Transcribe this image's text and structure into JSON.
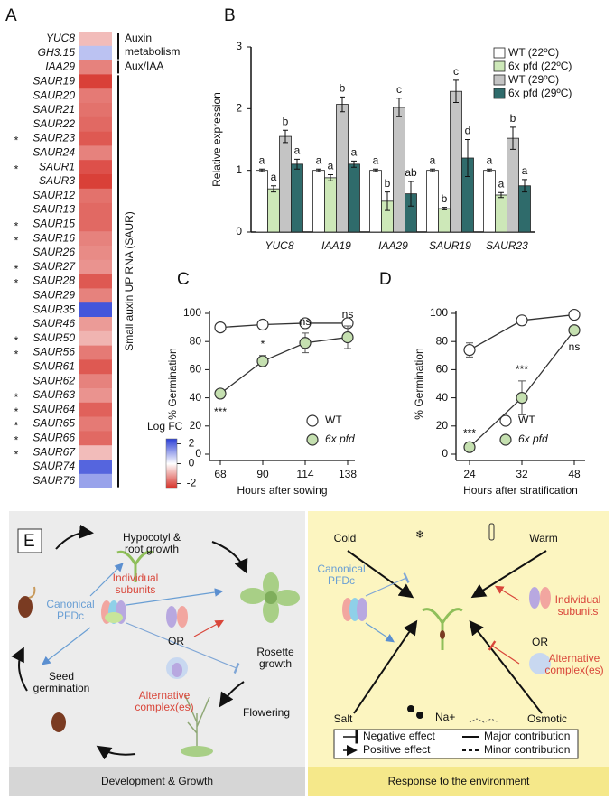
{
  "panel_labels": [
    "A",
    "B",
    "C",
    "D",
    "E"
  ],
  "chart_data": [
    {
      "type": "heatmap",
      "categories": [
        "YUC8",
        "GH3.15",
        "IAA29",
        "SAUR19",
        "SAUR20",
        "SAUR21",
        "SAUR22",
        "SAUR23",
        "SAUR24",
        "SAUR1",
        "SAUR3",
        "SAUR12",
        "SAUR13",
        "SAUR15",
        "SAUR16",
        "SAUR26",
        "SAUR27",
        "SAUR28",
        "SAUR29",
        "SAUR35",
        "SAUR46",
        "SAUR50",
        "SAUR56",
        "SAUR61",
        "SAUR62",
        "SAUR63",
        "SAUR64",
        "SAUR65",
        "SAUR66",
        "SAUR67",
        "SAUR74",
        "SAUR76"
      ],
      "significance": [
        null,
        null,
        null,
        null,
        null,
        null,
        null,
        "*",
        null,
        "*",
        null,
        null,
        null,
        "*",
        "*",
        null,
        "*",
        "*",
        null,
        null,
        null,
        "*",
        "*",
        null,
        null,
        "*",
        "*",
        "*",
        "*",
        "*",
        null,
        null
      ],
      "values": [
        -0.8,
        0.8,
        -1.5,
        -2.3,
        -1.6,
        -1.7,
        -1.8,
        -2.0,
        -1.5,
        -2.1,
        -2.3,
        -1.7,
        -1.8,
        -1.8,
        -1.5,
        -1.4,
        -1.3,
        -2.0,
        -1.5,
        2.2,
        -1.2,
        -0.9,
        -1.6,
        -2.0,
        -1.5,
        -1.3,
        -1.9,
        -1.6,
        -1.8,
        -0.8,
        2.0,
        1.2
      ],
      "groups": [
        [
          "Auxin",
          "metabolism"
        ],
        [
          "Aux/IAA"
        ],
        [
          "Small auxin UP RNA (SAUR)"
        ]
      ],
      "colorbar": {
        "title": "Log FC",
        "ticks": [
          2,
          0,
          -2
        ],
        "lim": [
          -2.5,
          2.5
        ],
        "colors": [
          "#d62f27",
          "#ffffff",
          "#2b3fd6"
        ]
      }
    },
    {
      "type": "bar",
      "ylabel": "Relative expression",
      "categories": [
        "YUC8",
        "IAA19",
        "IAA29",
        "SAUR19",
        "SAUR23"
      ],
      "ylim": [
        0,
        3
      ],
      "yticks": [
        0,
        1,
        2,
        3
      ],
      "legend": "upper right",
      "series": [
        {
          "name": "WT (22ºC)",
          "color": "#ffffff",
          "values": [
            1,
            1,
            1,
            1,
            1
          ],
          "errors": [
            0.02,
            0.02,
            0.02,
            0.02,
            0.02
          ],
          "letters": [
            "a",
            "a",
            "a",
            "a",
            "a"
          ]
        },
        {
          "name": "6x pfd (22ºC)",
          "color": "#cde8b8",
          "values": [
            0.7,
            0.88,
            0.5,
            0.38,
            0.6
          ],
          "errors": [
            0.05,
            0.05,
            0.15,
            0.02,
            0.04
          ],
          "letters": [
            "a",
            "a",
            "b",
            "b",
            "a"
          ]
        },
        {
          "name": "WT (29ºC)",
          "color": "#c4c4c4",
          "values": [
            1.55,
            2.07,
            2.02,
            2.28,
            1.52
          ],
          "errors": [
            0.1,
            0.12,
            0.15,
            0.18,
            0.18
          ],
          "letters": [
            "b",
            "b",
            "c",
            "c",
            "b"
          ]
        },
        {
          "name": "6x pfd (29ºC)",
          "color": "#2f6b6b",
          "values": [
            1.1,
            1.1,
            0.62,
            1.2,
            0.75
          ],
          "errors": [
            0.08,
            0.05,
            0.2,
            0.3,
            0.1
          ],
          "letters": [
            "a",
            "a",
            "ab",
            "d",
            "a"
          ]
        }
      ]
    },
    {
      "type": "line",
      "xlabel": "Hours after sowing",
      "ylabel": "% Germination",
      "categories": [
        68,
        90,
        114,
        138
      ],
      "ylim": [
        0,
        100
      ],
      "yticks": [
        0,
        20,
        40,
        60,
        80,
        100
      ],
      "legend": "lower right",
      "series": [
        {
          "name": "WT",
          "color": "#ffffff",
          "values": [
            90,
            92,
            93,
            93
          ]
        },
        {
          "name": "6x pfd",
          "color": "#c5e0b0",
          "values": [
            43,
            66,
            79,
            83
          ],
          "errors": [
            3,
            4,
            7,
            8
          ],
          "annotations": [
            "***",
            "*",
            "ns",
            "ns"
          ]
        }
      ]
    },
    {
      "type": "line",
      "xlabel": "Hours after stratification",
      "ylabel": "% Germination",
      "categories": [
        24,
        32,
        48
      ],
      "ylim": [
        0,
        100
      ],
      "yticks": [
        0,
        20,
        40,
        60,
        80,
        100
      ],
      "legend": "lower right",
      "series": [
        {
          "name": "WT",
          "color": "#ffffff",
          "values": [
            74,
            95,
            99
          ],
          "errors": [
            5,
            1,
            1
          ]
        },
        {
          "name": "6x pfd",
          "color": "#c5e0b0",
          "values": [
            5,
            40,
            88
          ],
          "errors": [
            2,
            12,
            2
          ],
          "annotations": [
            "***",
            "***",
            "ns"
          ]
        }
      ]
    }
  ],
  "diagram": {
    "left": {
      "hypocotyl": [
        "Hypocotyl &",
        "root growth"
      ],
      "subunits": [
        "Individual",
        "subunits"
      ],
      "canonical": [
        "Canonical",
        "PFDc"
      ],
      "or": "OR",
      "rosette": [
        "Rosette",
        "growth"
      ],
      "seed": [
        "Seed",
        "germination"
      ],
      "alternative": [
        "Alternative",
        "complex(es)"
      ],
      "flowering": "Flowering",
      "footer": "Development & Growth"
    },
    "right": {
      "cold": "Cold",
      "warm": "Warm",
      "canonical": [
        "Canonical",
        "PFDc"
      ],
      "subunits": [
        "Individual",
        "subunits"
      ],
      "or": "OR",
      "alternative": [
        "Alternative",
        "complex(es)"
      ],
      "salt": "Salt",
      "na": "Na+",
      "osmotic": "Osmotic",
      "negative": "Negative effect",
      "positive": "Positive effect",
      "major": "Major contribution",
      "minor": "Minor contribution",
      "footer": "Response to the environment"
    }
  }
}
